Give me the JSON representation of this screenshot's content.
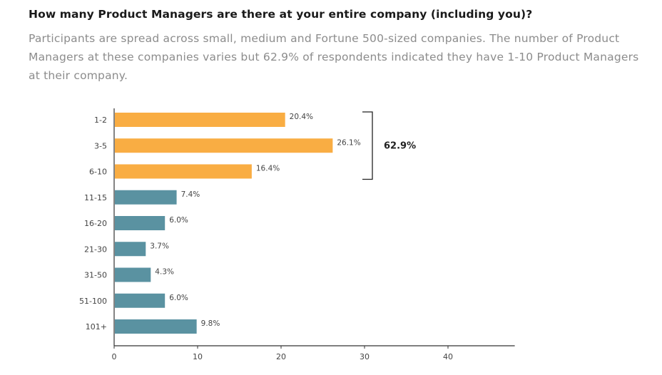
{
  "title": "How many Product Managers are there at your entire company (including you)?",
  "subtitle": "Participants are spread across small, medium and Fortune 500-sized companies. The number of Product Managers at these companies varies but 62.9% of respondents indicated they have 1-10 Product Managers at their company.",
  "chart_data": {
    "type": "bar",
    "orientation": "horizontal",
    "categories": [
      "1-2",
      "3-5",
      "6-10",
      "11-15",
      "16-20",
      "21-30",
      "31-50",
      "51-100",
      "101+"
    ],
    "values": [
      20.4,
      26.1,
      16.4,
      7.4,
      6.0,
      3.7,
      4.3,
      6.0,
      9.8
    ],
    "value_labels": [
      "20.4%",
      "26.1%",
      "16.4%",
      "7.4%",
      "6.0%",
      "3.7%",
      "4.3%",
      "6.0%",
      "9.8%"
    ],
    "xlim": [
      0,
      48
    ],
    "xticks": [
      0,
      10,
      20,
      30,
      40
    ],
    "highlight_group": {
      "categories": [
        "1-2",
        "3-5",
        "6-10"
      ],
      "label": "62.9%",
      "color": "#f9ad43"
    },
    "bar_color": "#5a92a1",
    "grid": false
  }
}
